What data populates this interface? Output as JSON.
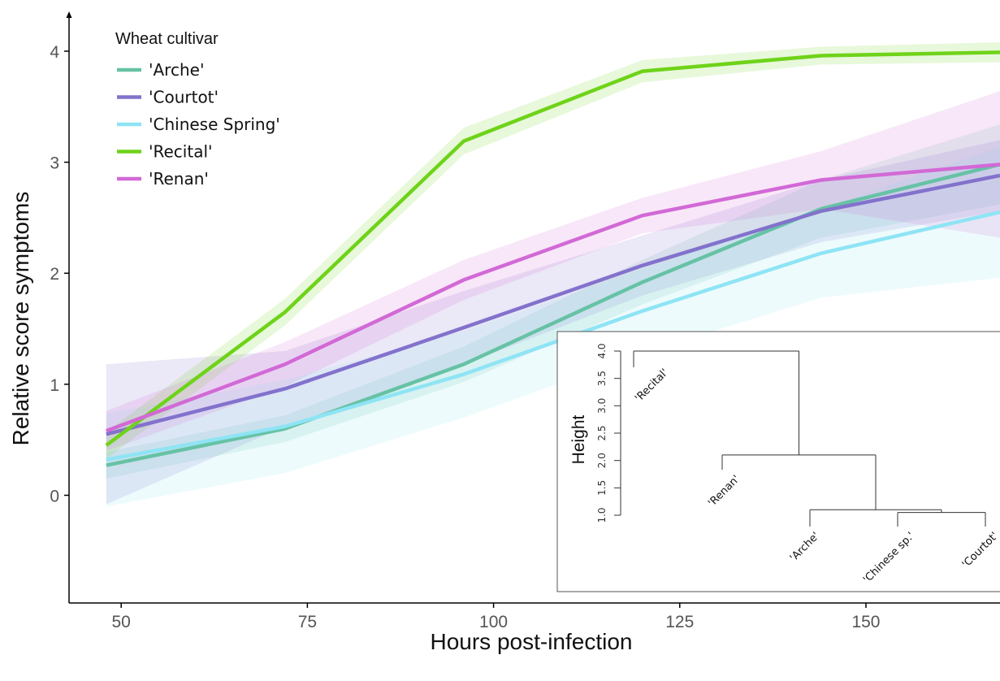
{
  "chart_data": [
    {
      "type": "line",
      "xlabel": "Hours post-infection",
      "ylabel": "Relative score symptoms",
      "x": [
        48,
        72,
        96,
        120,
        144,
        168
      ],
      "xlim": [
        43,
        168
      ],
      "ylim": [
        -0.97,
        4.3
      ],
      "xticks": [
        50,
        75,
        100,
        125,
        150
      ],
      "yticks": [
        0,
        1,
        2,
        3,
        4
      ],
      "grid": false,
      "legend": {
        "title": "Wheat cultivar",
        "position": "top-left"
      },
      "series": [
        {
          "name": "'Arche'",
          "color": "#66c2a5",
          "values": [
            0.27,
            0.6,
            1.18,
            1.92,
            2.58,
            2.98
          ],
          "lower": [
            0.15,
            0.48,
            1.02,
            1.72,
            2.32,
            2.62
          ],
          "upper": [
            0.39,
            0.72,
            1.34,
            2.12,
            2.84,
            3.34
          ]
        },
        {
          "name": "'Courtot'",
          "color": "#8372cc",
          "values": [
            0.55,
            0.96,
            1.51,
            2.07,
            2.56,
            2.88
          ],
          "lower": [
            -0.08,
            0.62,
            1.18,
            1.8,
            2.28,
            2.56
          ],
          "upper": [
            1.18,
            1.3,
            1.84,
            2.34,
            2.84,
            3.2
          ]
        },
        {
          "name": "'Chinese Spring'",
          "color": "#8ee4f4",
          "values": [
            0.32,
            0.62,
            1.09,
            1.66,
            2.18,
            2.55
          ],
          "lower": [
            -0.1,
            0.2,
            0.7,
            1.28,
            1.78,
            1.96
          ],
          "upper": [
            0.74,
            1.04,
            1.48,
            2.04,
            2.58,
            3.14
          ]
        },
        {
          "name": "'Recital'",
          "color": "#6ed319",
          "values": [
            0.45,
            1.65,
            3.19,
            3.82,
            3.96,
            3.99
          ],
          "lower": [
            0.33,
            1.53,
            3.07,
            3.72,
            3.88,
            3.9
          ],
          "upper": [
            0.57,
            1.77,
            3.31,
            3.92,
            4.04,
            4.08
          ]
        },
        {
          "name": "'Renan'",
          "color": "#d269d6",
          "values": [
            0.58,
            1.18,
            1.94,
            2.52,
            2.84,
            2.98
          ],
          "lower": [
            0.4,
            0.98,
            1.76,
            2.36,
            2.58,
            2.32
          ],
          "upper": [
            0.76,
            1.38,
            2.12,
            2.68,
            3.1,
            3.64
          ]
        }
      ]
    },
    {
      "type": "dendrogram",
      "ylabel": "Height",
      "ylim": [
        1.0,
        4.0
      ],
      "yticks": [
        "1.0",
        "1.5",
        "2.0",
        "2.5",
        "3.0",
        "3.5",
        "4.0"
      ],
      "leaves": [
        "'Recital'",
        "'Renan'",
        "'Arche'",
        "'Chinese sp.'",
        "'Courtot'"
      ],
      "merges": [
        {
          "left": "'Chinese sp.'",
          "right": "'Courtot'",
          "height": 1.05
        },
        {
          "left": "'Arche'",
          "right": "'Chinese sp.' + 'Courtot'",
          "height": 1.1
        },
        {
          "left": "'Renan'",
          "right": "'Arche' + 'Chinese sp.' + 'Courtot'",
          "height": 2.1
        },
        {
          "left": "'Recital'",
          "right": "all other cultivars",
          "height": 4.0
        }
      ]
    }
  ]
}
